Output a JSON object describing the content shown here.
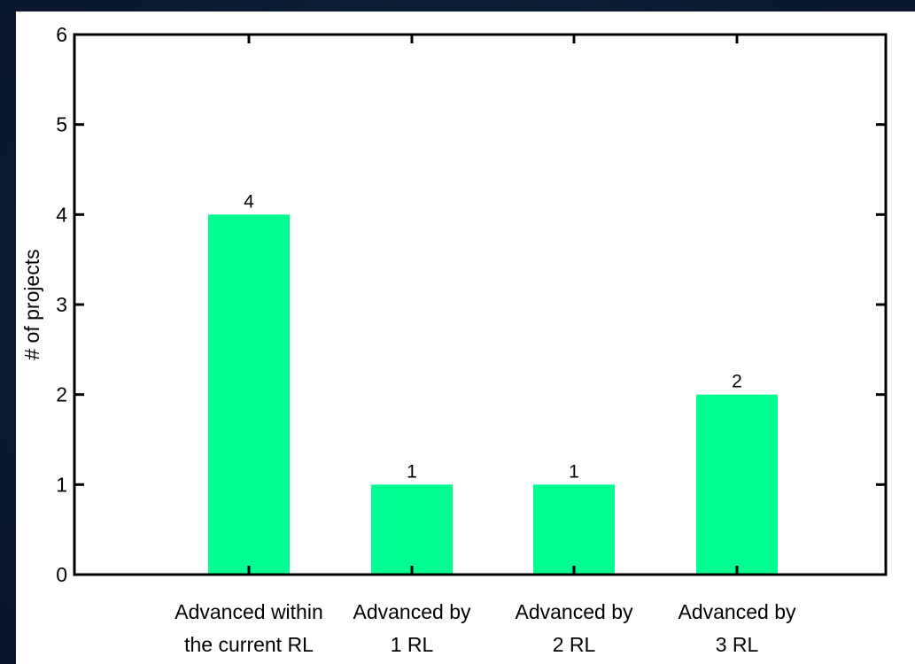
{
  "chart_data": {
    "type": "bar",
    "categories": [
      [
        "Advanced within",
        "the current RL"
      ],
      [
        "Advanced by",
        "1 RL"
      ],
      [
        "Advanced by",
        "2 RL"
      ],
      [
        "Advanced by",
        "3 RL"
      ]
    ],
    "values": [
      4,
      1,
      1,
      2
    ],
    "data_labels": [
      "4",
      "1",
      "1",
      "2"
    ],
    "ylabel": "# of projects",
    "xlabel": "",
    "title": "",
    "ylim": [
      0,
      6
    ],
    "yticks": [
      0,
      1,
      2,
      3,
      4,
      5,
      6
    ],
    "bar_color": "#00ff90",
    "grid": false,
    "background": "#ffffff",
    "slide_background": "#0b1a30"
  }
}
